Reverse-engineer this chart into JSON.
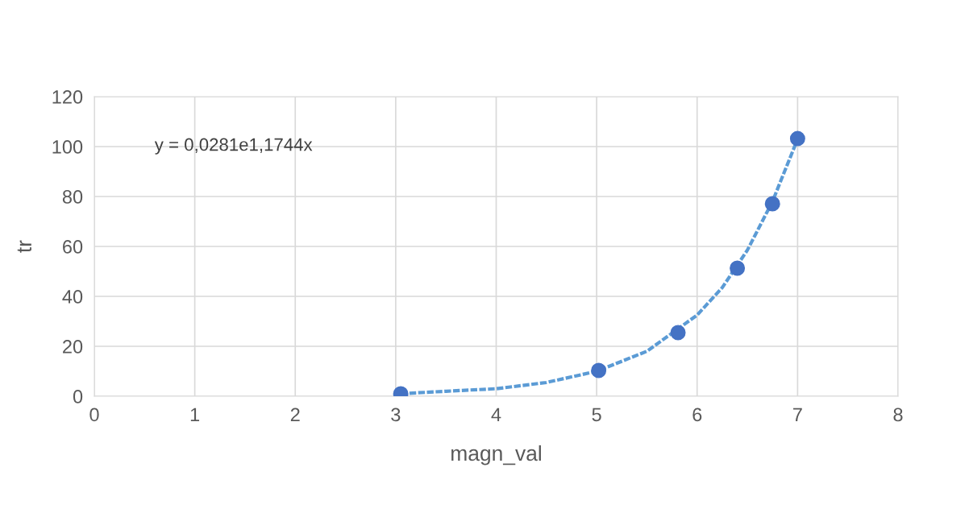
{
  "chart_data": {
    "type": "scatter",
    "xlabel": "magn_val",
    "ylabel": "tr",
    "annotations": [
      "y = 0,0281e1,1744x"
    ],
    "series": [
      {
        "type": "line",
        "color": "#5b9bd5",
        "line_style": "dashed",
        "marker": "none",
        "x": [
          3.05,
          3.5,
          4,
          4.5,
          5,
          5.5,
          6,
          6.25,
          6.5,
          6.75,
          7
        ],
        "values": [
          1,
          2,
          3,
          5.5,
          10,
          18,
          32.5,
          43.5,
          58.5,
          78,
          103
        ]
      },
      {
        "color": "#4472c4",
        "marker": "circle",
        "x": [
          3.05,
          5.02,
          5.81,
          6.4,
          6.75,
          7.0
        ],
        "values": [
          1,
          10.3,
          25.5,
          51.3,
          77.1,
          103.2
        ]
      }
    ],
    "xlim": [
      0,
      8
    ],
    "xticks": [
      0,
      1,
      2,
      3,
      4,
      5,
      6,
      7,
      8
    ],
    "ylim": [
      0,
      120
    ],
    "yticks": [
      0,
      20,
      40,
      60,
      80,
      100,
      120
    ],
    "grid": true
  }
}
